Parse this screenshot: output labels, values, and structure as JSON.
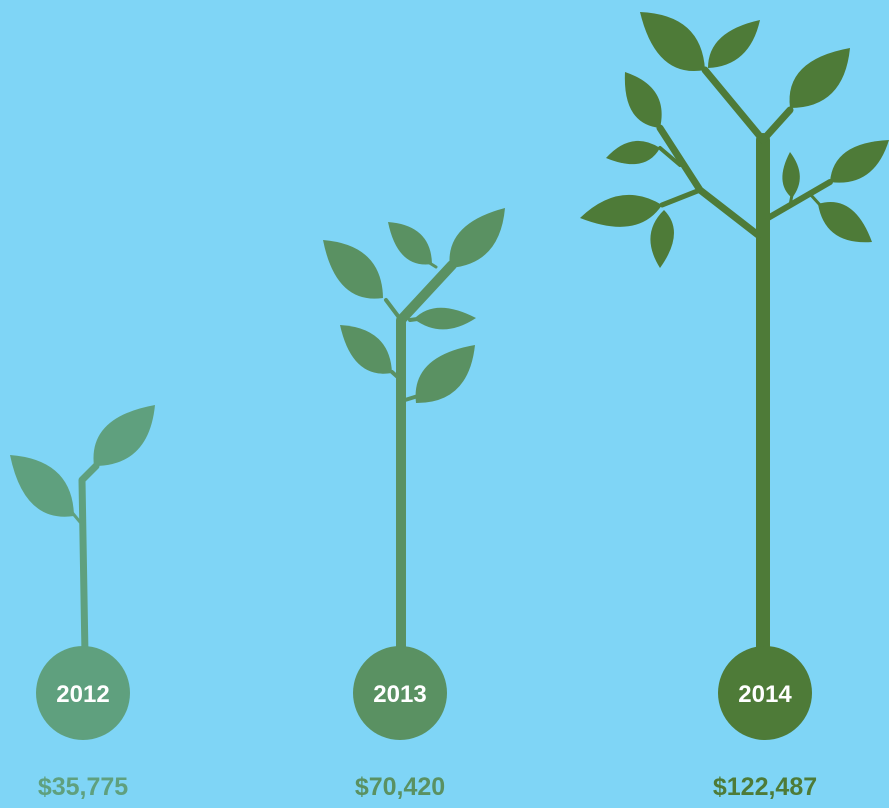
{
  "items": [
    {
      "year": "2012",
      "amount": "$35,775"
    },
    {
      "year": "2013",
      "amount": "$70,420"
    },
    {
      "year": "2014",
      "amount": "$122,487"
    }
  ]
}
